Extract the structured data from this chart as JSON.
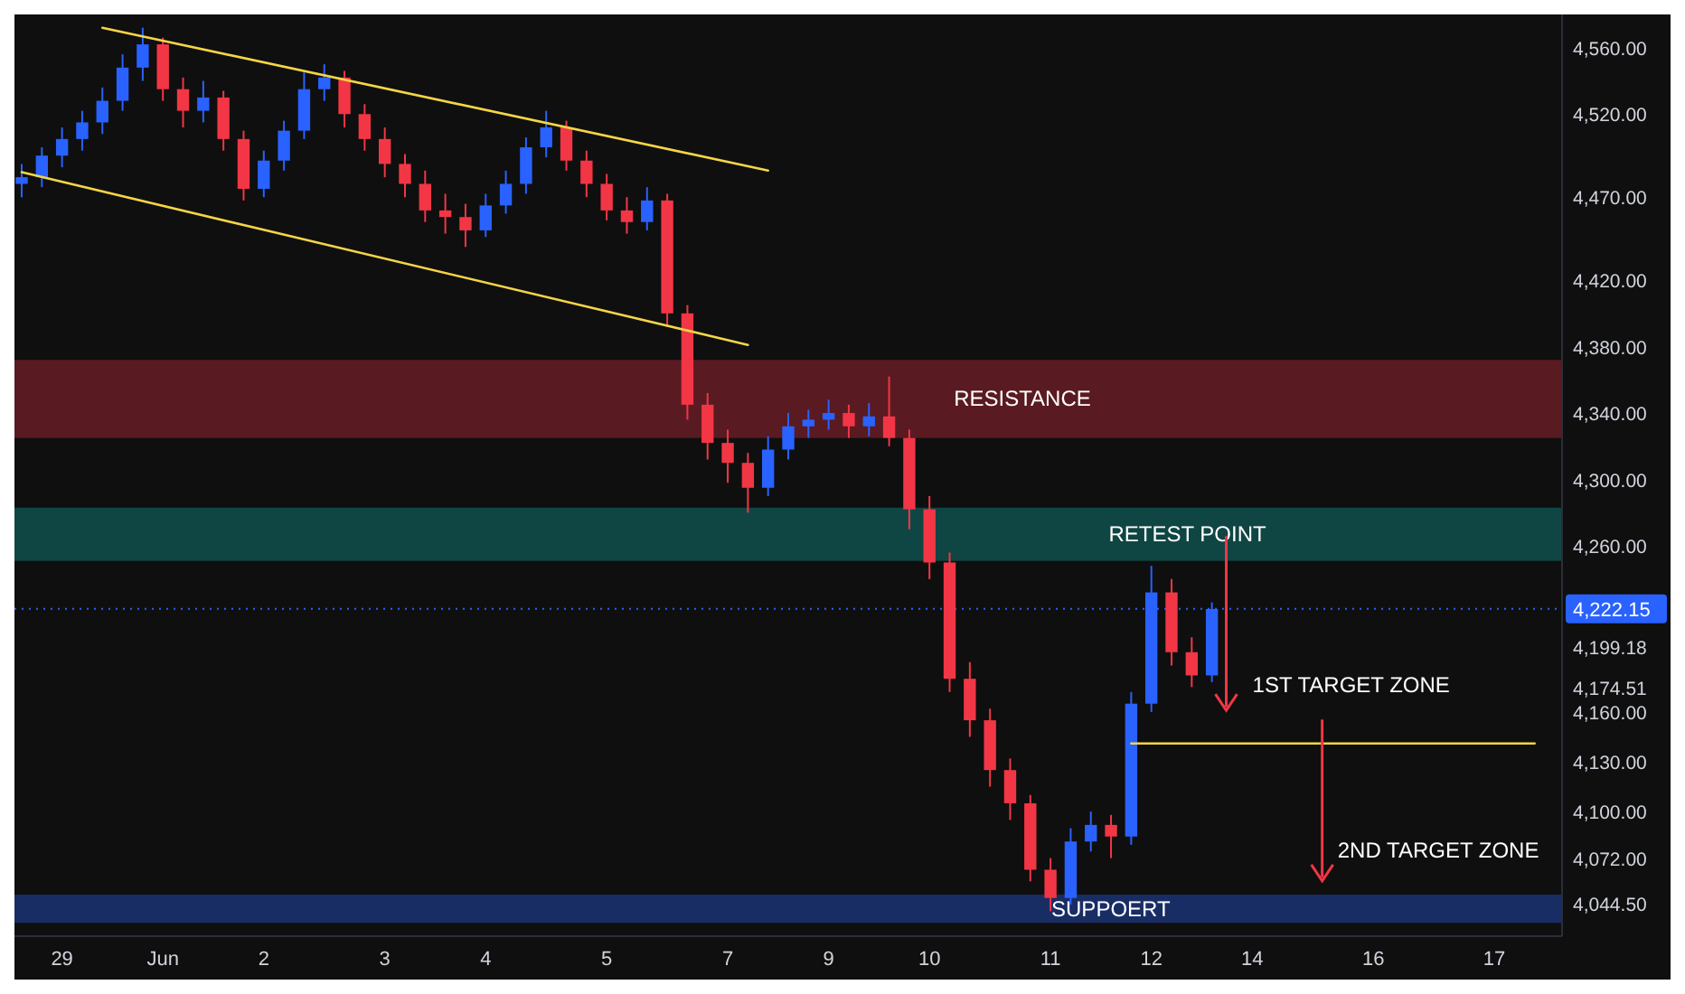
{
  "chart_data": {
    "type": "candlestick",
    "categories": [
      null,
      null,
      "29",
      null,
      null,
      null,
      null,
      "Jun",
      null,
      null,
      null,
      null,
      "2",
      null,
      null,
      null,
      null,
      null,
      "3",
      null,
      null,
      null,
      null,
      "4",
      null,
      null,
      null,
      null,
      null,
      "5",
      null,
      null,
      null,
      null,
      null,
      "7",
      null,
      null,
      null,
      null,
      "9",
      null,
      null,
      null,
      null,
      "10",
      null,
      null,
      null,
      null,
      null,
      "11",
      null,
      null,
      null,
      null,
      "12",
      null,
      null,
      null,
      null,
      "14",
      null,
      null,
      null,
      null,
      null,
      "16",
      null,
      null,
      null,
      null,
      null,
      "17",
      null,
      null,
      null
    ],
    "ohlc": [
      [
        4478,
        4490,
        4470,
        4482
      ],
      [
        4482,
        4500,
        4476,
        4495
      ],
      [
        4495,
        4512,
        4488,
        4505
      ],
      [
        4505,
        4522,
        4498,
        4515
      ],
      [
        4515,
        4536,
        4508,
        4528
      ],
      [
        4528,
        4556,
        4522,
        4548
      ],
      [
        4548,
        4572,
        4540,
        4562
      ],
      [
        4562,
        4566,
        4528,
        4535
      ],
      [
        4535,
        4542,
        4512,
        4522
      ],
      [
        4522,
        4540,
        4515,
        4530
      ],
      [
        4530,
        4534,
        4498,
        4505
      ],
      [
        4505,
        4510,
        4468,
        4475
      ],
      [
        4475,
        4498,
        4470,
        4492
      ],
      [
        4492,
        4516,
        4486,
        4510
      ],
      [
        4510,
        4545,
        4505,
        4535
      ],
      [
        4535,
        4550,
        4528,
        4542
      ],
      [
        4542,
        4546,
        4512,
        4520
      ],
      [
        4520,
        4526,
        4498,
        4505
      ],
      [
        4505,
        4512,
        4482,
        4490
      ],
      [
        4490,
        4496,
        4470,
        4478
      ],
      [
        4478,
        4486,
        4455,
        4462
      ],
      [
        4462,
        4472,
        4448,
        4458
      ],
      [
        4458,
        4466,
        4440,
        4450
      ],
      [
        4450,
        4472,
        4446,
        4465
      ],
      [
        4465,
        4486,
        4460,
        4478
      ],
      [
        4478,
        4506,
        4472,
        4500
      ],
      [
        4500,
        4522,
        4494,
        4512
      ],
      [
        4512,
        4516,
        4486,
        4492
      ],
      [
        4492,
        4498,
        4470,
        4478
      ],
      [
        4478,
        4484,
        4456,
        4462
      ],
      [
        4462,
        4470,
        4448,
        4455
      ],
      [
        4455,
        4476,
        4450,
        4468
      ],
      [
        4468,
        4472,
        4392,
        4400
      ],
      [
        4400,
        4405,
        4336,
        4345
      ],
      [
        4345,
        4352,
        4312,
        4322
      ],
      [
        4322,
        4330,
        4298,
        4310
      ],
      [
        4310,
        4316,
        4280,
        4295
      ],
      [
        4295,
        4326,
        4290,
        4318
      ],
      [
        4318,
        4340,
        4312,
        4332
      ],
      [
        4332,
        4342,
        4325,
        4336
      ],
      [
        4336,
        4348,
        4330,
        4340
      ],
      [
        4340,
        4345,
        4325,
        4332
      ],
      [
        4332,
        4346,
        4326,
        4338
      ],
      [
        4338,
        4362,
        4320,
        4325
      ],
      [
        4325,
        4330,
        4270,
        4282
      ],
      [
        4282,
        4290,
        4240,
        4250
      ],
      [
        4250,
        4256,
        4172,
        4180
      ],
      [
        4180,
        4190,
        4145,
        4155
      ],
      [
        4155,
        4162,
        4115,
        4125
      ],
      [
        4125,
        4132,
        4095,
        4105
      ],
      [
        4105,
        4110,
        4058,
        4065
      ],
      [
        4065,
        4072,
        4040,
        4048
      ],
      [
        4048,
        4090,
        4044,
        4082
      ],
      [
        4082,
        4100,
        4076,
        4092
      ],
      [
        4092,
        4098,
        4072,
        4085
      ],
      [
        4085,
        4172,
        4080,
        4165
      ],
      [
        4165,
        4248,
        4160,
        4232
      ],
      [
        4232,
        4240,
        4188,
        4196
      ],
      [
        4196,
        4205,
        4175,
        4182
      ],
      [
        4182,
        4226,
        4178,
        4222
      ],
      null,
      null,
      null,
      null,
      null,
      null,
      null,
      null,
      null,
      null,
      null,
      null,
      null,
      null,
      null,
      null,
      null
    ],
    "colors": [
      "#2962ff",
      "#2962ff",
      "#2962ff",
      "#2962ff",
      "#2962ff",
      "#2962ff",
      "#2962ff",
      "#f23645",
      "#f23645",
      "#2962ff",
      "#f23645",
      "#f23645",
      "#2962ff",
      "#2962ff",
      "#2962ff",
      "#2962ff",
      "#f23645",
      "#f23645",
      "#f23645",
      "#f23645",
      "#f23645",
      "#f23645",
      "#f23645",
      "#2962ff",
      "#2962ff",
      "#2962ff",
      "#2962ff",
      "#f23645",
      "#f23645",
      "#f23645",
      "#f23645",
      "#2962ff",
      "#f23645",
      "#f23645",
      "#f23645",
      "#f23645",
      "#f23645",
      "#2962ff",
      "#2962ff",
      "#2962ff",
      "#2962ff",
      "#f23645",
      "#2962ff",
      "#f23645",
      "#f23645",
      "#f23645",
      "#f23645",
      "#f23645",
      "#f23645",
      "#f23645",
      "#f23645",
      "#f23645",
      "#2962ff",
      "#2962ff",
      "#f23645",
      "#2962ff",
      "#2962ff",
      "#f23645",
      "#f23645",
      "#2962ff",
      null,
      null,
      null,
      null,
      null,
      null,
      null,
      null,
      null,
      null,
      null,
      null,
      null,
      null,
      null,
      null,
      null
    ],
    "series": [
      {
        "type": "line",
        "color": "#f5d547",
        "values": [
          null,
          null,
          null,
          null,
          4572,
          null,
          null,
          null,
          null,
          null,
          null,
          null,
          null,
          null,
          null,
          null,
          null,
          null,
          null,
          null,
          null,
          null,
          null,
          null,
          null,
          null,
          null,
          null,
          null,
          null,
          null,
          null,
          null,
          null,
          null,
          null,
          null,
          4486,
          null,
          null,
          null,
          null,
          null,
          null,
          null,
          null,
          null,
          null,
          null,
          null,
          null,
          null,
          null,
          null,
          null,
          null,
          null,
          null,
          null,
          null,
          null,
          null,
          null,
          null,
          null,
          null,
          null,
          null,
          null,
          null,
          null,
          null,
          null,
          null,
          null,
          null,
          null
        ]
      },
      {
        "type": "line",
        "color": "#f5d547",
        "values": [
          4485,
          null,
          null,
          null,
          null,
          null,
          null,
          null,
          null,
          null,
          null,
          null,
          null,
          null,
          null,
          null,
          null,
          null,
          null,
          null,
          null,
          null,
          null,
          null,
          null,
          null,
          null,
          null,
          null,
          null,
          null,
          null,
          null,
          null,
          null,
          null,
          4381,
          null,
          null,
          null,
          null,
          null,
          null,
          null,
          null,
          null,
          null,
          null,
          null,
          null,
          null,
          null,
          null,
          null,
          null,
          null,
          null,
          null,
          null,
          null,
          null,
          null,
          null,
          null,
          null,
          null,
          null,
          null,
          null,
          null,
          null,
          null,
          null,
          null,
          null,
          null,
          null
        ]
      },
      {
        "type": "line",
        "color": "#f5d547",
        "values": [
          null,
          null,
          null,
          null,
          null,
          null,
          null,
          null,
          null,
          null,
          null,
          null,
          null,
          null,
          null,
          null,
          null,
          null,
          null,
          null,
          null,
          null,
          null,
          null,
          null,
          null,
          null,
          null,
          null,
          null,
          null,
          null,
          null,
          null,
          null,
          null,
          null,
          null,
          null,
          null,
          null,
          null,
          null,
          null,
          null,
          null,
          null,
          null,
          null,
          null,
          null,
          null,
          null,
          null,
          null,
          4141,
          null,
          null,
          null,
          null,
          null,
          null,
          null,
          null,
          null,
          null,
          null,
          null,
          null,
          null,
          null,
          null,
          null,
          null,
          null,
          4141,
          null
        ]
      }
    ],
    "bands": [
      {
        "axis": "y",
        "from": 4325,
        "to": 4372,
        "color": "#7a1f2a",
        "label": "RESISTANCE"
      },
      {
        "axis": "y",
        "from": 4251,
        "to": 4283,
        "color": "#0f5e5a",
        "label": "RETEST POINT"
      },
      {
        "axis": "y",
        "from": 4033,
        "to": 4050,
        "color": "#1e3a8a",
        "label": "SUPPOERT"
      }
    ],
    "ref_lines": [
      {
        "axis": "y",
        "value": 4222.15,
        "label": "4,222.15",
        "color": "#2962ff",
        "line_style": "dotted"
      }
    ],
    "annotations": [
      "1ST TARGET ZONE",
      "2ND TARGET ZONE"
    ],
    "ylim": [
      4025,
      4580
    ],
    "yticks": [
      {
        "value": 4560,
        "label": "4,560.00"
      },
      {
        "value": 4520,
        "label": "4,520.00"
      },
      {
        "value": 4470,
        "label": "4,470.00"
      },
      {
        "value": 4420,
        "label": "4,420.00"
      },
      {
        "value": 4380,
        "label": "4,380.00"
      },
      {
        "value": 4340,
        "label": "4,340.00"
      },
      {
        "value": 4300,
        "label": "4,300.00"
      },
      {
        "value": 4260,
        "label": "4,260.00"
      },
      {
        "value": 4199.18,
        "label": "4,199.18"
      },
      {
        "value": 4174.51,
        "label": "4,174.51"
      },
      {
        "value": 4160,
        "label": "4,160.00"
      },
      {
        "value": 4130,
        "label": "4,130.00"
      },
      {
        "value": 4100,
        "label": "4,100.00"
      },
      {
        "value": 4072,
        "label": "4,072.00"
      },
      {
        "value": 4044.5,
        "label": "4,044.50"
      }
    ],
    "grid": false
  }
}
